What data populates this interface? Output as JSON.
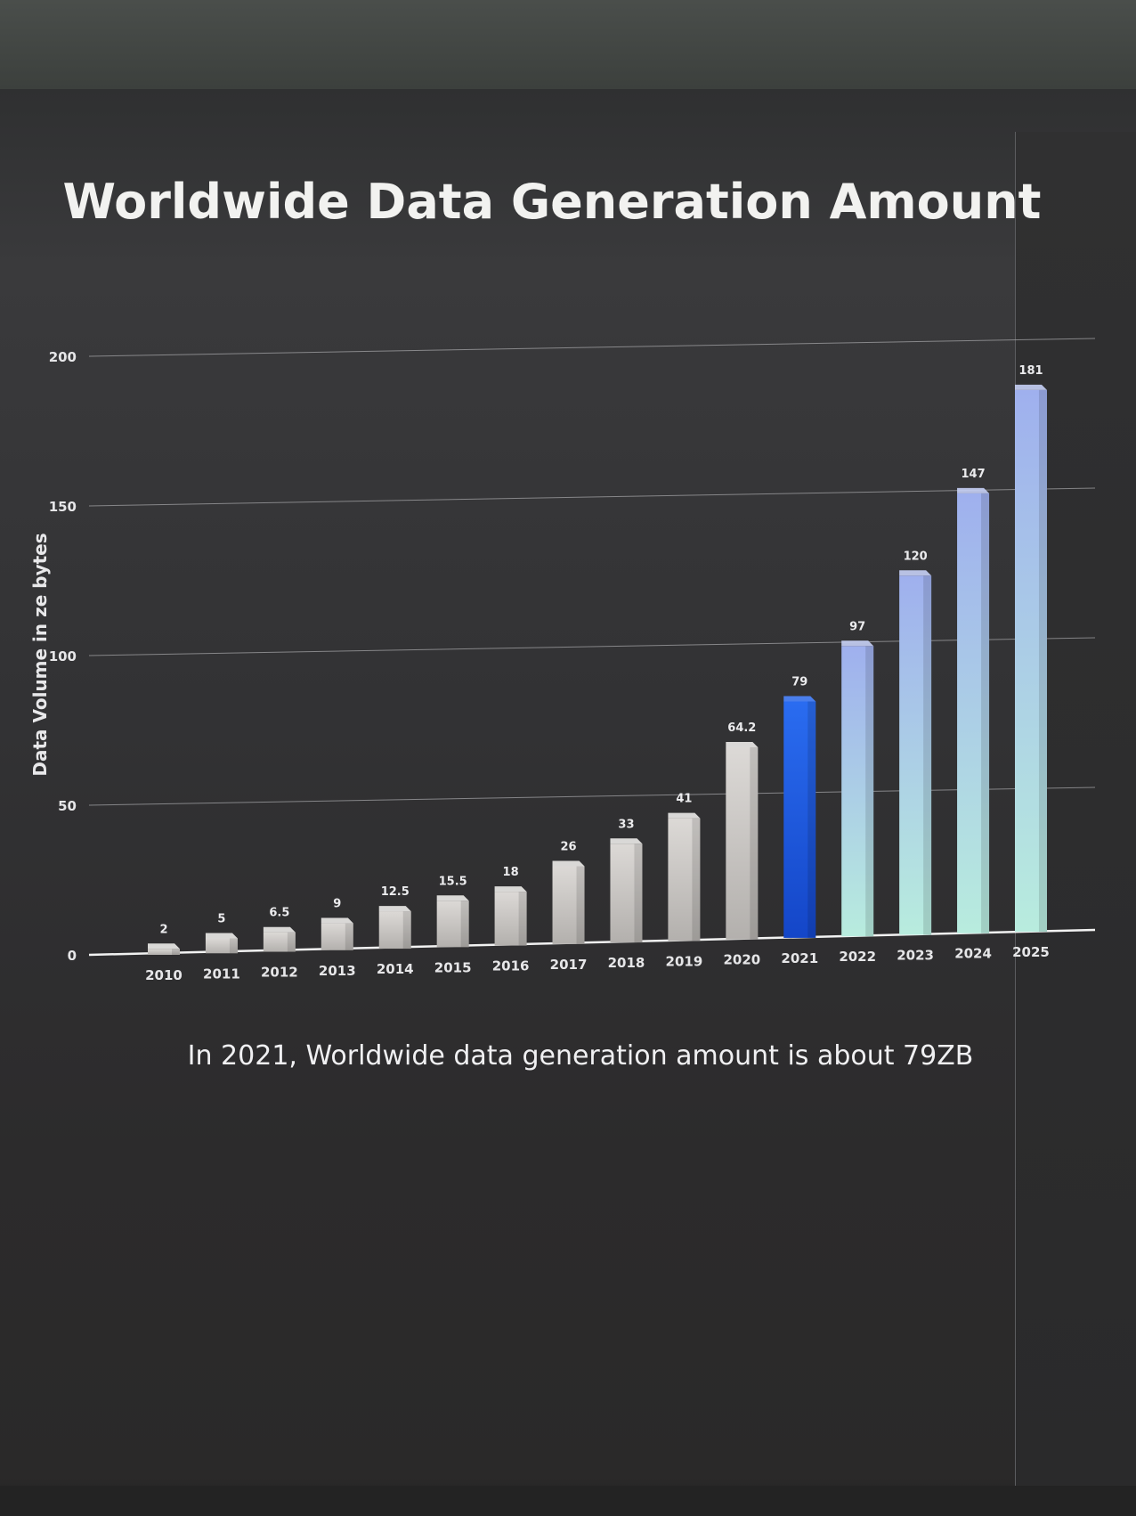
{
  "chart_data": {
    "type": "bar",
    "title": "Worldwide Data Generation Amount",
    "ylabel": "Data Volume in ze bytes",
    "xlabel": "",
    "ylim": [
      0,
      200
    ],
    "yticks": [
      "0",
      "50",
      "100",
      "150",
      "200"
    ],
    "grid": true,
    "categories": [
      "2010",
      "2011",
      "2012",
      "2013",
      "2014",
      "2015",
      "2016",
      "2017",
      "2018",
      "2019",
      "2020",
      "2021",
      "2022",
      "2023",
      "2024",
      "2025"
    ],
    "values": [
      2,
      5,
      6.5,
      9,
      12.5,
      15.5,
      18,
      26,
      33,
      41,
      64.2,
      79,
      97,
      120,
      147,
      181
    ],
    "value_labels": [
      "2",
      "5",
      "6.5",
      "9",
      "12.5",
      "15.5",
      "18",
      "26",
      "33",
      "41",
      "64.2",
      "79",
      "97",
      "120",
      "147",
      "181"
    ],
    "highlight_category": "2021",
    "colors": {
      "historical": "#c9c6c4",
      "highlight": "#1f5fe0",
      "forecast_top": "#9fb0ee",
      "forecast_bottom": "#b8ecde"
    },
    "caption": "In 2021, Worldwide data generation amount is about 79ZB"
  }
}
